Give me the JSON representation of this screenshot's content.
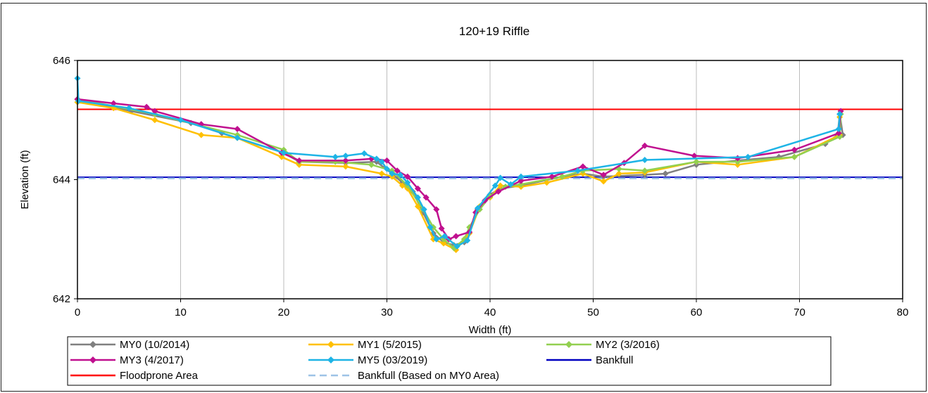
{
  "chart_data": {
    "type": "line",
    "title": "120+19 Riffle",
    "xlabel": "Width (ft)",
    "ylabel": "Elevation (ft)",
    "xlim": [
      0,
      80
    ],
    "ylim": [
      642,
      646
    ],
    "x_ticks": [
      "0",
      "10",
      "20",
      "30",
      "40",
      "50",
      "60",
      "70",
      "80"
    ],
    "y_ticks": [
      "642",
      "644",
      "646"
    ],
    "grid": "vertical",
    "legend_position": "bottom",
    "series": [
      {
        "name": "MY0 (10/2014)",
        "color": "#808080",
        "marker": "diamond",
        "points": [
          [
            0,
            645.35
          ],
          [
            5.2,
            645.15
          ],
          [
            11,
            644.95
          ],
          [
            14,
            644.78
          ],
          [
            20,
            644.45
          ],
          [
            21.5,
            644.3
          ],
          [
            26,
            644.28
          ],
          [
            29,
            644.3
          ],
          [
            30.5,
            644.1
          ],
          [
            31.5,
            643.95
          ],
          [
            32.5,
            643.8
          ],
          [
            33.5,
            643.45
          ],
          [
            34.5,
            643.1
          ],
          [
            35.5,
            642.95
          ],
          [
            36.5,
            642.9
          ],
          [
            37.5,
            642.95
          ],
          [
            38,
            643.1
          ],
          [
            38.8,
            643.5
          ],
          [
            40,
            643.75
          ],
          [
            41,
            643.85
          ],
          [
            43,
            643.9
          ],
          [
            47,
            644.05
          ],
          [
            49,
            644.1
          ],
          [
            51,
            644.05
          ],
          [
            55,
            644.08
          ],
          [
            57,
            644.1
          ],
          [
            60,
            644.25
          ],
          [
            64,
            644.32
          ],
          [
            68,
            644.38
          ],
          [
            72.5,
            644.6
          ],
          [
            73.7,
            644.75
          ],
          [
            73.9,
            645.1
          ],
          [
            74.2,
            644.75
          ]
        ]
      },
      {
        "name": "MY1 (5/2015)",
        "color": "#FFC000",
        "marker": "diamond",
        "points": [
          [
            0,
            645.3
          ],
          [
            3.5,
            645.2
          ],
          [
            7.5,
            645.0
          ],
          [
            12,
            644.75
          ],
          [
            15.5,
            644.7
          ],
          [
            19.8,
            644.38
          ],
          [
            21.5,
            644.25
          ],
          [
            26,
            644.22
          ],
          [
            29.5,
            644.1
          ],
          [
            30.5,
            644.05
          ],
          [
            31.5,
            643.9
          ],
          [
            32,
            643.85
          ],
          [
            33,
            643.55
          ],
          [
            34.5,
            643.0
          ],
          [
            35.5,
            642.93
          ],
          [
            36.7,
            642.82
          ],
          [
            37.5,
            643.0
          ],
          [
            38,
            643.1
          ],
          [
            39,
            643.55
          ],
          [
            40,
            643.7
          ],
          [
            41,
            643.9
          ],
          [
            43,
            643.88
          ],
          [
            45.5,
            643.95
          ],
          [
            49,
            644.1
          ],
          [
            51,
            643.97
          ],
          [
            52.5,
            644.1
          ],
          [
            55,
            644.12
          ],
          [
            60,
            644.3
          ],
          [
            64,
            644.25
          ],
          [
            69.5,
            644.38
          ],
          [
            73.9,
            644.75
          ],
          [
            73.9,
            645.05
          ]
        ]
      },
      {
        "name": "MY2 (3/2016)",
        "color": "#92D050",
        "marker": "diamond",
        "points": [
          [
            0,
            645.35
          ],
          [
            7.5,
            645.1
          ],
          [
            15.5,
            644.75
          ],
          [
            20,
            644.5
          ],
          [
            21.5,
            644.3
          ],
          [
            25,
            644.3
          ],
          [
            28.5,
            644.25
          ],
          [
            30.5,
            644.15
          ],
          [
            32,
            643.9
          ],
          [
            33.5,
            643.5
          ],
          [
            34.5,
            643.2
          ],
          [
            35.5,
            643.0
          ],
          [
            36.5,
            642.85
          ],
          [
            37.5,
            643.0
          ],
          [
            38,
            643.2
          ],
          [
            39,
            643.5
          ],
          [
            40,
            643.72
          ],
          [
            41.5,
            643.88
          ],
          [
            43,
            643.92
          ],
          [
            47,
            644.05
          ],
          [
            49,
            644.15
          ],
          [
            52.5,
            644.18
          ],
          [
            55,
            644.15
          ],
          [
            60,
            644.3
          ],
          [
            64,
            644.3
          ],
          [
            69.5,
            644.38
          ],
          [
            73.9,
            644.72
          ],
          [
            74,
            645.1
          ]
        ]
      },
      {
        "name": "MY3 (4/2017)",
        "color": "#C0108F",
        "marker": "diamond",
        "points": [
          [
            0,
            645.35
          ],
          [
            3.5,
            645.28
          ],
          [
            6.7,
            645.22
          ],
          [
            7.5,
            645.15
          ],
          [
            12,
            644.93
          ],
          [
            15.5,
            644.85
          ],
          [
            19.8,
            644.45
          ],
          [
            21.5,
            644.32
          ],
          [
            26,
            644.32
          ],
          [
            28.5,
            644.35
          ],
          [
            30,
            644.32
          ],
          [
            31,
            644.15
          ],
          [
            32,
            644.05
          ],
          [
            33,
            643.85
          ],
          [
            33.8,
            643.7
          ],
          [
            34.8,
            643.5
          ],
          [
            35.3,
            643.18
          ],
          [
            36,
            643.0
          ],
          [
            36.7,
            643.05
          ],
          [
            38,
            643.12
          ],
          [
            38.6,
            643.45
          ],
          [
            39.5,
            643.65
          ],
          [
            40.8,
            643.8
          ],
          [
            43,
            643.98
          ],
          [
            46,
            644.05
          ],
          [
            49,
            644.22
          ],
          [
            51,
            644.08
          ],
          [
            53,
            644.28
          ],
          [
            55,
            644.57
          ],
          [
            59.8,
            644.4
          ],
          [
            64,
            644.36
          ],
          [
            69.5,
            644.5
          ],
          [
            73.8,
            644.78
          ],
          [
            74,
            645.15
          ]
        ]
      },
      {
        "name": "MY5 (03/2019)",
        "color": "#1EB4E6",
        "marker": "diamond",
        "points": [
          [
            0,
            645.7
          ],
          [
            0.1,
            645.32
          ],
          [
            5,
            645.2
          ],
          [
            10,
            645.0
          ],
          [
            15.5,
            644.7
          ],
          [
            20,
            644.45
          ],
          [
            25,
            644.38
          ],
          [
            26,
            644.4
          ],
          [
            27.8,
            644.44
          ],
          [
            29,
            644.35
          ],
          [
            29.5,
            644.3
          ],
          [
            30,
            644.18
          ],
          [
            30.5,
            644.1
          ],
          [
            31.3,
            644.08
          ],
          [
            32,
            643.95
          ],
          [
            33,
            643.7
          ],
          [
            33.6,
            643.5
          ],
          [
            34.2,
            643.2
          ],
          [
            34.8,
            643.0
          ],
          [
            35.6,
            643.05
          ],
          [
            36.8,
            642.88
          ],
          [
            37.8,
            642.98
          ],
          [
            38.8,
            643.52
          ],
          [
            40.5,
            643.9
          ],
          [
            41,
            644.03
          ],
          [
            42,
            643.92
          ],
          [
            43,
            644.05
          ],
          [
            48.5,
            644.15
          ],
          [
            55,
            644.33
          ],
          [
            65,
            644.38
          ],
          [
            73.8,
            644.85
          ],
          [
            73.9,
            645.1
          ]
        ]
      },
      {
        "name": "Bankfull",
        "color": "#0000C0",
        "marker": "none",
        "dashed": false,
        "points": [
          [
            0,
            644.04
          ],
          [
            80,
            644.04
          ]
        ]
      },
      {
        "name": "Floodprone Area",
        "color": "#FF0000",
        "marker": "none",
        "dashed": false,
        "points": [
          [
            0,
            645.18
          ],
          [
            80,
            645.18
          ]
        ]
      },
      {
        "name": "Bankfull (Based on MY0 Area)",
        "color": "#9DC3E6",
        "marker": "none",
        "dashed": true,
        "points": [
          [
            0,
            644.02
          ],
          [
            80,
            644.02
          ]
        ]
      }
    ]
  }
}
